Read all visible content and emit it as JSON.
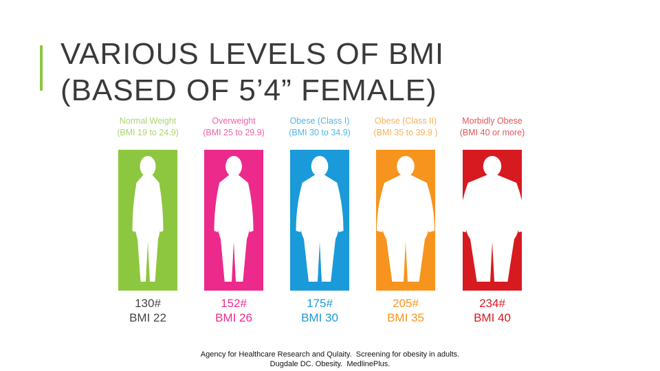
{
  "title": {
    "line1": "VARIOUS LEVELS OF BMI",
    "line2": "(BASED OF 5’4” FEMALE)"
  },
  "panels": [
    {
      "label": "Normal Weight",
      "range": "(BMI 19 to 24.9)",
      "color": "#8dc63f",
      "weight": "130#",
      "bmi": "BMI 22"
    },
    {
      "label": "Overweight",
      "range": "(BMI 25 to 29.9)",
      "color": "#ec2a8c",
      "weight": "152#",
      "bmi": "BMI 26"
    },
    {
      "label": "Obese (Class I)",
      "range": "(BMI 30 to 34.9)",
      "color": "#1a9ad8",
      "weight": "175#",
      "bmi": "BMI 30"
    },
    {
      "label": "Obese (Class II)",
      "range": "(BMI 35 to 39.9 )",
      "color": "#f7941d",
      "weight": "205#",
      "bmi": "BMI 35"
    },
    {
      "label": "Morbidly Obese",
      "range": "(BMI 40 or more)",
      "color": "#d71920",
      "weight": "234#",
      "bmi": "BMI 40"
    }
  ],
  "citation": [
    "Agency for Healthcare Research and Qulaity.  Screening for obesity in adults.",
    "Dugdale DC. Obesity.  MedlinePlus."
  ]
}
